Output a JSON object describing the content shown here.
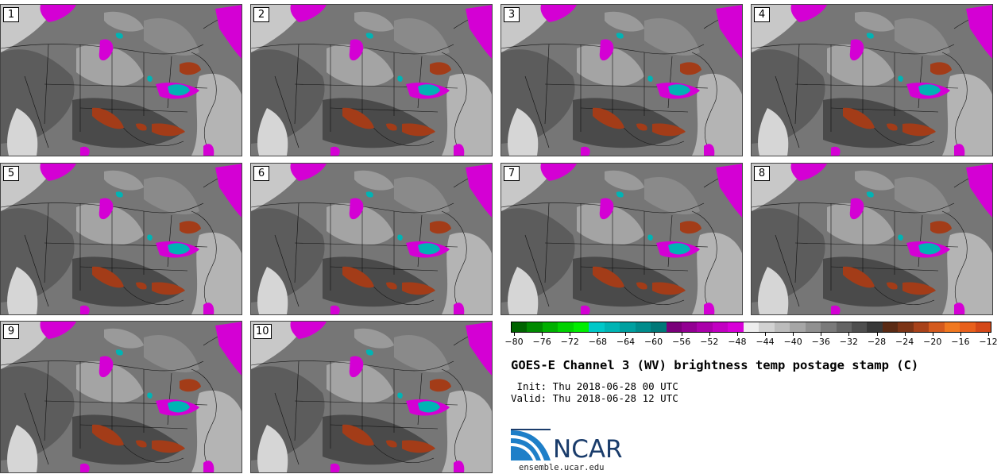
{
  "panels": [
    "1",
    "2",
    "3",
    "4",
    "5",
    "6",
    "7",
    "8",
    "9",
    "10"
  ],
  "colorbar": {
    "colors": [
      "#006400",
      "#008a00",
      "#00b000",
      "#00d200",
      "#00ee00",
      "#00c8c8",
      "#00b4b4",
      "#00a0a0",
      "#008c8c",
      "#007878",
      "#7a007a",
      "#920092",
      "#aa00aa",
      "#c200c2",
      "#d800d8",
      "#eeeeee",
      "#d2d2d2",
      "#bcbcbc",
      "#a6a6a6",
      "#909090",
      "#7a7a7a",
      "#646464",
      "#4e4e4e",
      "#383838",
      "#5a2a14",
      "#7c3416",
      "#a8421a",
      "#d45a1e",
      "#f07820",
      "#e8601c",
      "#d44818"
    ],
    "tick_labels": [
      "−80",
      "−76",
      "−72",
      "−68",
      "−64",
      "−60",
      "−56",
      "−52",
      "−48",
      "−44",
      "−40",
      "−36",
      "−32",
      "−28",
      "−24",
      "−20",
      "−16",
      "−12"
    ]
  },
  "title": "GOES-E Channel 3 (WV) brightness temp postage stamp (C)",
  "init_line": " Init: Thu 2018-06-28 00 UTC",
  "valid_line": "Valid: Thu 2018-06-28 12 UTC",
  "logo_text": "NCAR",
  "url": "ensemble.ucar.edu"
}
